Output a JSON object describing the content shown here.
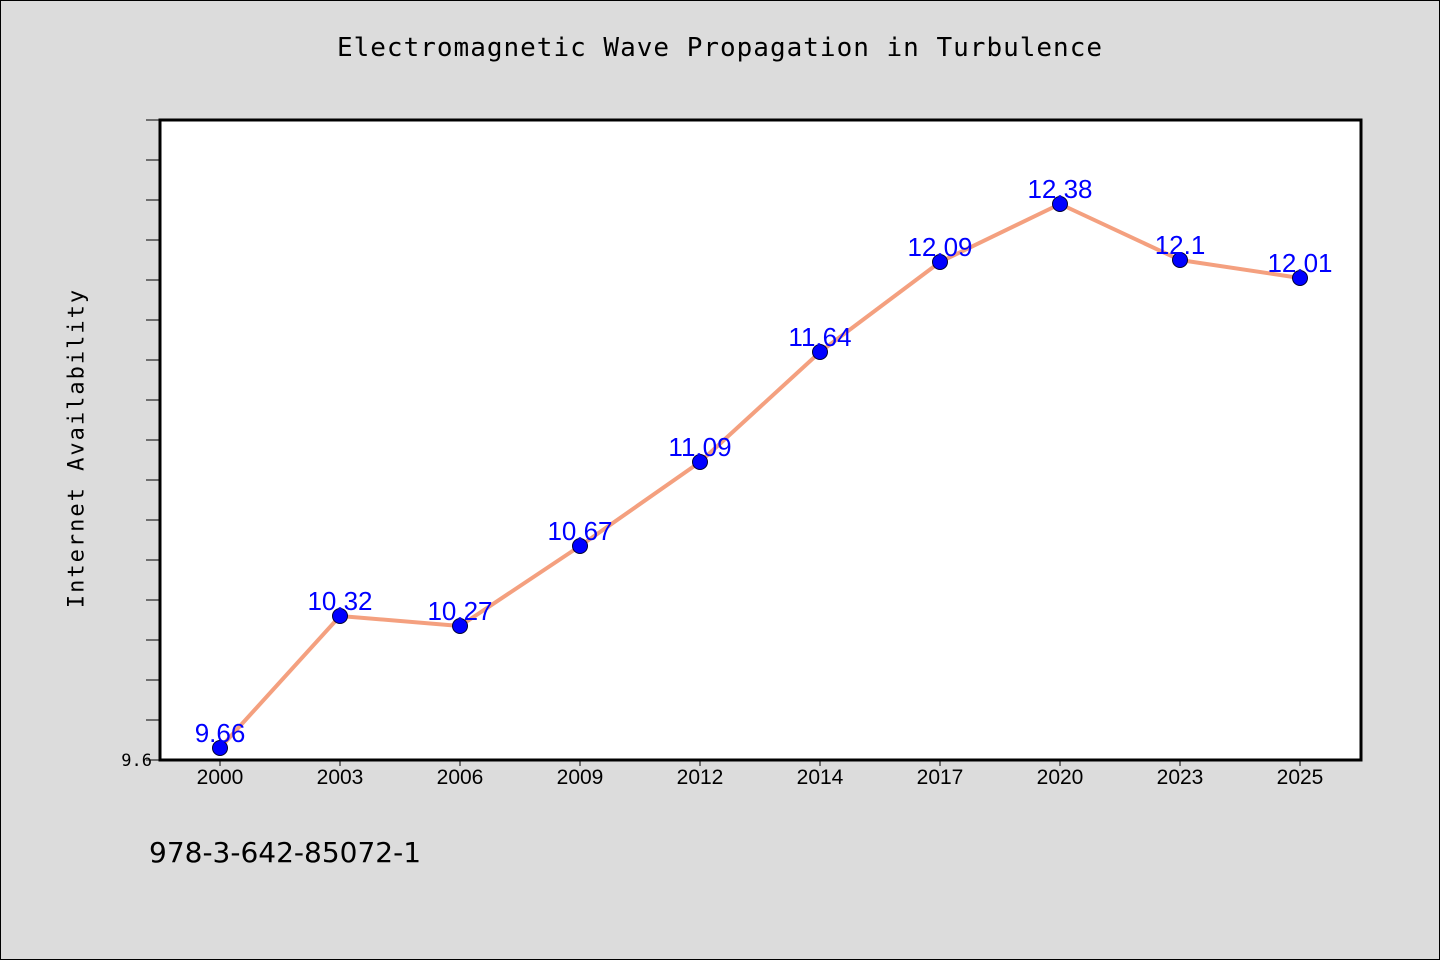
{
  "chart_data": {
    "type": "line",
    "title": "Electromagnetic Wave Propagation in Turbulence",
    "xlabel": "",
    "ylabel": "Internet Availability",
    "categories": [
      "2000",
      "2003",
      "2006",
      "2009",
      "2012",
      "2014",
      "2017",
      "2020",
      "2023",
      "2025"
    ],
    "series": [
      {
        "values": [
          9.66,
          10.32,
          10.27,
          10.67,
          11.09,
          11.64,
          12.09,
          12.38,
          12.1,
          12.01
        ]
      }
    ],
    "data_labels": [
      "9.66",
      "10.32",
      "10.27",
      "10.67",
      "11.09",
      "11.64",
      "12.09",
      "12.38",
      "12.1",
      "12.01"
    ],
    "y_tick_labels": [
      "9.6"
    ],
    "ylim": [
      9.6,
      12.8
    ],
    "grid": false,
    "legend": "none",
    "colors": {
      "line": "#f4a07f",
      "marker": "#0000ff",
      "data_label": "#0000ff",
      "plot_background": "#ffffff",
      "page_background": "#dcdcdc"
    }
  },
  "footer": {
    "code": "978-3-642-85072-1"
  }
}
